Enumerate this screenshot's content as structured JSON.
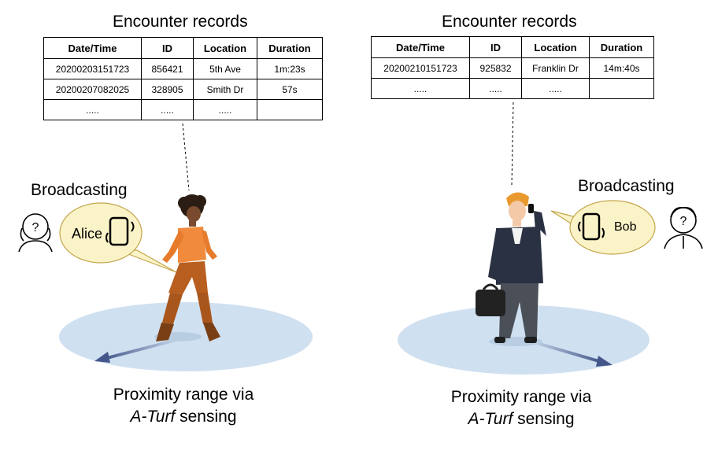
{
  "left_panel": {
    "title": "Encounter records",
    "table": {
      "headers": [
        "Date/Time",
        "ID",
        "Location",
        "Duration"
      ],
      "rows": [
        [
          "20200203151723",
          "856421",
          "5th Ave",
          "1m:23s"
        ],
        [
          "20200207082025",
          "328905",
          "Smith Dr",
          "57s"
        ],
        [
          ".....",
          ".....",
          ".....",
          ""
        ]
      ]
    },
    "broadcast_label": "Broadcasting",
    "speaker_name": "Alice",
    "caption_line1": "Proximity range via",
    "caption_em": "A-Turf",
    "caption_rest": " sensing"
  },
  "right_panel": {
    "title": "Encounter records",
    "table": {
      "headers": [
        "Date/Time",
        "ID",
        "Location",
        "Duration"
      ],
      "rows": [
        [
          "20200210151723",
          "925832",
          "Franklin Dr",
          "14m:40s"
        ],
        [
          ".....",
          ".....",
          ".....",
          ""
        ]
      ]
    },
    "broadcast_label": "Broadcasting",
    "speaker_name": "Bob",
    "caption_line1": "Proximity range via",
    "caption_em": "A-Turf",
    "caption_rest": " sensing"
  },
  "colors": {
    "range_disk": "#cfe0f1",
    "bubble_fill": "#fbf3c8",
    "bubble_stroke": "#c2a54a",
    "arrow": "#45568a"
  }
}
